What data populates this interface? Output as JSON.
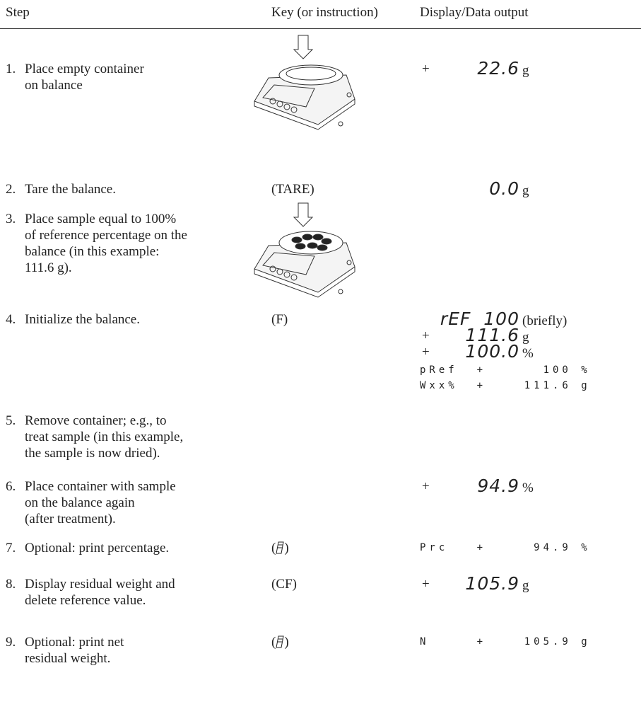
{
  "header": {
    "step": "Step",
    "key": "Key (or instruction)",
    "display": "Display/Data output"
  },
  "rows": [
    {
      "number": "1.",
      "text": [
        "Place empty container",
        "on balance"
      ],
      "display": [
        {
          "sign": "+",
          "reading": "22.6",
          "unit": "g"
        }
      ]
    },
    {
      "number": "2.",
      "text": [
        "Tare the balance."
      ],
      "key": "(TARE)",
      "display": [
        {
          "reading": "0.0",
          "unit": "g"
        }
      ]
    },
    {
      "number": "3.",
      "text": [
        "Place sample equal to 100%",
        "of reference percentage on the",
        "balance (in this example:",
        "111.6 g)."
      ]
    },
    {
      "number": "4.",
      "text": [
        "Initialize the balance."
      ],
      "key": "(F)",
      "display": [
        {
          "reading": "rEF  100",
          "note": "(briefly)"
        },
        {
          "sign": "+",
          "reading": "111.6",
          "unit": "g"
        },
        {
          "sign": "+",
          "reading": "100.0",
          "unit": "%"
        }
      ],
      "printout": [
        "pRef  +      100 %",
        "Wxx%  +    111.6 g"
      ]
    },
    {
      "number": "5.",
      "text": [
        "Remove container; e.g., to",
        "treat sample (in this example,",
        "the sample is now dried)."
      ]
    },
    {
      "number": "6.",
      "text": [
        "Place container with sample",
        "on the balance again",
        "(after treatment)."
      ],
      "display": [
        {
          "sign": "+",
          "reading": "94.9",
          "unit": "%"
        }
      ]
    },
    {
      "number": "7.",
      "text": [
        "Optional: print percentage."
      ],
      "key_icon": {
        "open": "(",
        "close": ")"
      },
      "printout": [
        "Prc   +     94.9 %"
      ]
    },
    {
      "number": "8.",
      "text": [
        "Display residual weight and",
        "delete reference value."
      ],
      "key": "(CF)",
      "display": [
        {
          "sign": "+",
          "reading": "105.9",
          "unit": "g"
        }
      ]
    },
    {
      "number": "9.",
      "text": [
        "Optional: print net",
        "residual weight."
      ],
      "key_icon": {
        "open": "(",
        "close": ")"
      },
      "printout": [
        "N     +    105.9 g"
      ]
    }
  ]
}
